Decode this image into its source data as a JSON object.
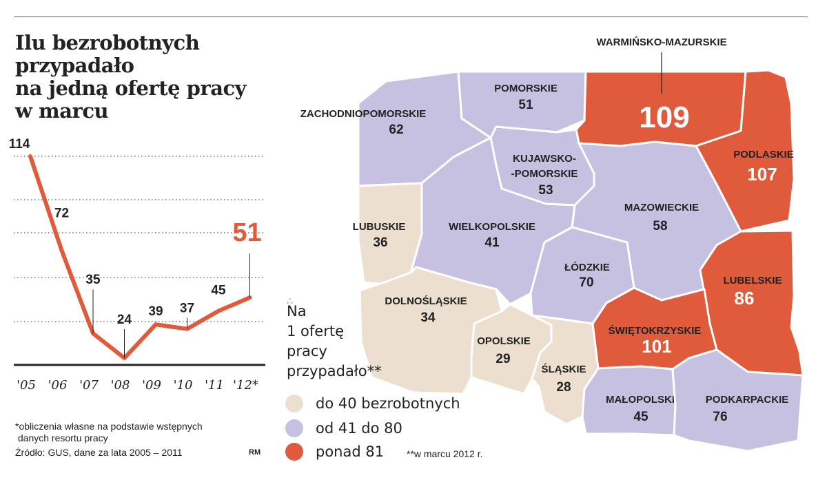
{
  "title": "Ilu bezrobotnych przypadało\nna jedną ofertę pracy\nw marcu",
  "chart_data": [
    {
      "type": "line",
      "categories": [
        "'05",
        "'06",
        "'07",
        "'08",
        "'09",
        "'10",
        "'11",
        "'12*"
      ],
      "values": [
        114,
        72,
        35,
        24,
        39,
        37,
        45,
        51
      ],
      "value_labels": [
        "114",
        "72",
        "35",
        "24",
        "39",
        "37",
        "45",
        "51"
      ],
      "ylim": [
        20,
        120
      ],
      "gridlines": true,
      "line_color": "#e05a3c",
      "highlight": "51"
    },
    {
      "type": "map",
      "regions": [
        {
          "name": "ZACHODNIOPOMORSKIE",
          "value": 62,
          "value_label": "62",
          "class": "mid"
        },
        {
          "name": "POMORSKIE",
          "value": 51,
          "value_label": "51",
          "class": "mid"
        },
        {
          "name": "WARMIŃSKO-MAZURSKIE",
          "value": 109,
          "value_label": "109",
          "class": "high"
        },
        {
          "name": "PODLASKIE",
          "value": 107,
          "value_label": "107",
          "class": "high"
        },
        {
          "name": "KUJAWSKO-\n-POMORSKIE",
          "value": 53,
          "value_label": "53",
          "class": "mid"
        },
        {
          "name": "MAZOWIECKIE",
          "value": 58,
          "value_label": "58",
          "class": "mid"
        },
        {
          "name": "LUBUSKIE",
          "value": 36,
          "value_label": "36",
          "class": "low"
        },
        {
          "name": "WIELKOPOLSKIE",
          "value": 41,
          "value_label": "41",
          "class": "mid"
        },
        {
          "name": "ŁÓDZKIE",
          "value": 70,
          "value_label": "70",
          "class": "mid"
        },
        {
          "name": "LUBELSKIE",
          "value": 86,
          "value_label": "86",
          "class": "high"
        },
        {
          "name": "DOLNOŚLĄSKIE",
          "value": 34,
          "value_label": "34",
          "class": "low"
        },
        {
          "name": "OPOLSKIE",
          "value": 29,
          "value_label": "29",
          "class": "low"
        },
        {
          "name": "ŚLĄSKIE",
          "value": 28,
          "value_label": "28",
          "class": "low"
        },
        {
          "name": "ŚWIĘTOKRZYSKIE",
          "value": 101,
          "value_label": "101",
          "class": "high"
        },
        {
          "name": "MAŁOPOLSKIE",
          "value": 45,
          "value_label": "45",
          "class": "mid"
        },
        {
          "name": "PODKARPACKIE",
          "value": 76,
          "value_label": "76",
          "class": "mid"
        }
      ],
      "colors": {
        "low": "#eddfcf",
        "mid": "#c6c1e0",
        "high": "#e05a3c"
      }
    }
  ],
  "legend": {
    "question": "Na\n1 ofertę\npracy\nprzypadało**",
    "items": [
      {
        "label": "do 40 bezrobotnych",
        "color": "#eddfcf"
      },
      {
        "label": "od 41 do 80",
        "color": "#c6c1e0"
      },
      {
        "label": "ponad 81",
        "color": "#e05a3c"
      }
    ]
  },
  "footnotes": {
    "note1": "*obliczenia własne na podstawie wstępnych\n danych resortu pracy",
    "source": "Źródło: GUS, dane za lata 2005 – 2011",
    "author": "RM",
    "note2": "**w marcu 2012 r."
  }
}
